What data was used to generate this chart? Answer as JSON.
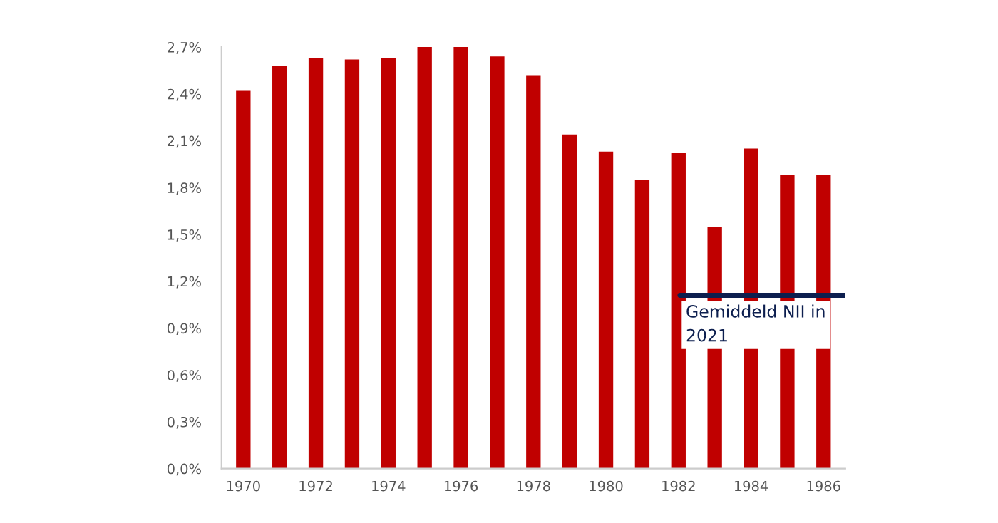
{
  "chart_data": {
    "type": "bar",
    "categories": [
      "1970",
      null,
      "1972",
      null,
      "1974",
      null,
      "1976",
      null,
      "1978",
      null,
      "1980",
      null,
      "1982",
      null,
      "1984",
      null,
      "1986"
    ],
    "values": [
      2.42,
      2.58,
      2.63,
      2.62,
      2.63,
      2.7,
      2.7,
      2.64,
      2.52,
      2.14,
      2.03,
      1.85,
      2.02,
      1.55,
      2.05,
      1.88,
      1.88
    ],
    "color": "#c00000",
    "ylim": [
      0,
      2.7
    ],
    "yticks": [
      {
        "value": 0,
        "label": "0,0%"
      },
      {
        "value": 0.3,
        "label": "0,3%"
      },
      {
        "value": 0.6,
        "label": "0,6%"
      },
      {
        "value": 0.9,
        "label": "0,9%"
      },
      {
        "value": 1.2,
        "label": "1,2%"
      },
      {
        "value": 1.5,
        "label": "1,5%"
      },
      {
        "value": 1.8,
        "label": "1,8%"
      },
      {
        "value": 2.1,
        "label": "2,1%"
      },
      {
        "value": 2.4,
        "label": "2,4%"
      },
      {
        "value": 2.7,
        "label": "2,7%"
      }
    ],
    "ref_lines": [
      {
        "axis": "y",
        "value": 1.11,
        "label": "Gemiddeld NII in\n2021",
        "color": "#0d1f4f"
      }
    ],
    "grid": false
  }
}
